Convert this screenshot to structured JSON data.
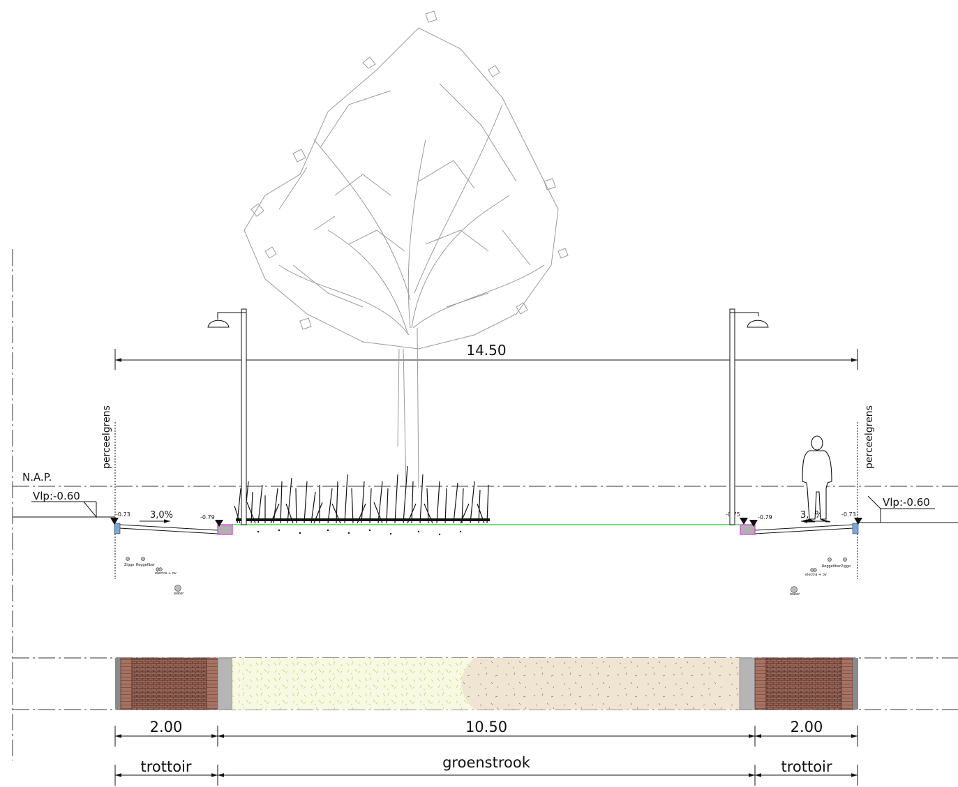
{
  "dimensions": {
    "overall": "14.50",
    "left_sidewalk": "2.00",
    "middle": "10.50",
    "right_sidewalk": "2.00"
  },
  "zones": {
    "left": "trottoir",
    "middle": "groenstrook",
    "right": "trottoir"
  },
  "boundary_label": "perceelgrens",
  "nap_label": "N.A.P.",
  "level_left": "Vlp:-0.60",
  "level_right": "Vlp:-0.60",
  "slope_left": "3,0%",
  "slope_right": "3,0%",
  "spot_levels": {
    "left_edge": "-0.73",
    "left_curb": "-0.79",
    "right_curb_top": "-0.75",
    "right_curb": "-0.79",
    "right_edge": "-0.73"
  },
  "cables_left": {
    "ziggo": "Ziggo",
    "reggefiber": "Reggefiber",
    "electra": "electra + ov",
    "water": "water"
  },
  "cables_right": {
    "ziggo": "Ziggo",
    "reggefiber": "Reggefiber",
    "electra": "electra + ov",
    "water": "water"
  },
  "colors": {
    "grass_line": "#4cd64c",
    "brick": "#a0695a",
    "paving": "#8c5a4a",
    "curb": "#b0b0b0",
    "green_strip": "#f2f5d8",
    "sand": "#efe4cf",
    "curb_marker": "#d13bd1",
    "edge_marker": "#7aa7d9"
  },
  "icons": [
    "tree-icon",
    "street-lamp-icon",
    "person-icon",
    "shrubs-icon"
  ]
}
